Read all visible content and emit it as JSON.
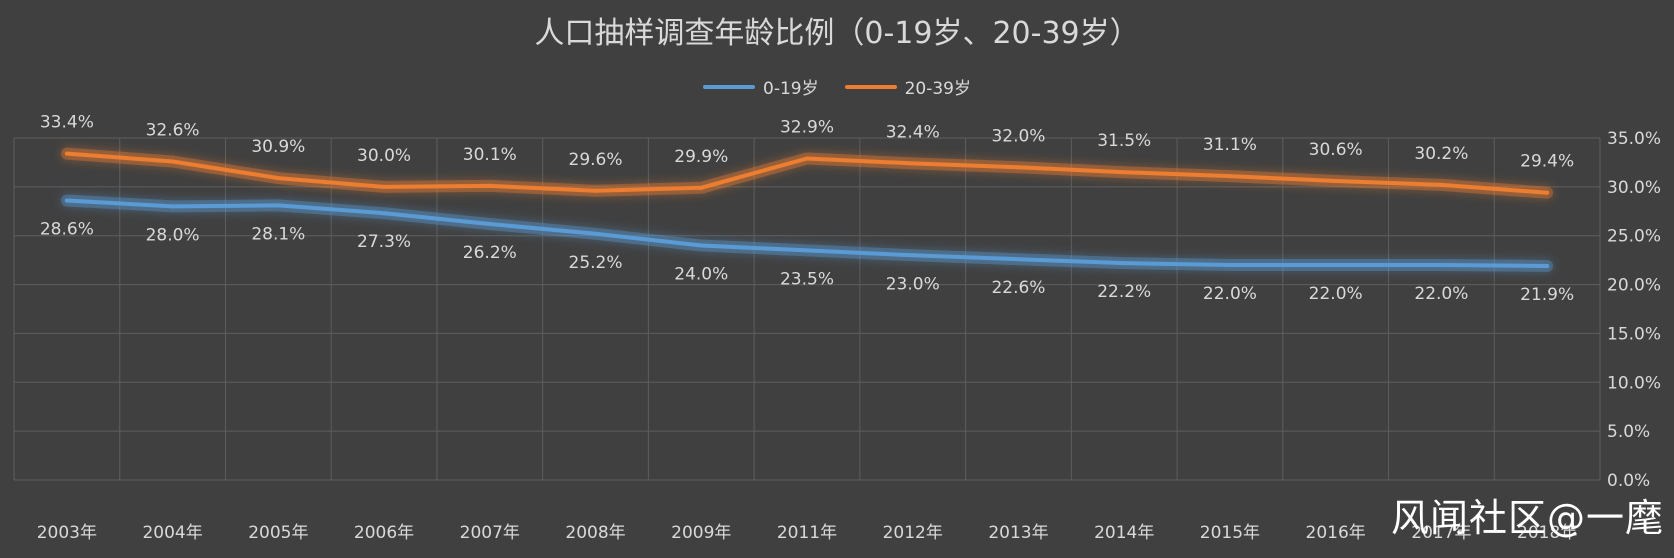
{
  "chart_data": {
    "type": "line",
    "title": "人口抽样调查年龄比例（0-19岁、20-39岁）",
    "categories": [
      "2003年",
      "2004年",
      "2005年",
      "2006年",
      "2007年",
      "2008年",
      "2009年",
      "2011年",
      "2012年",
      "2013年",
      "2014年",
      "2015年",
      "2016年",
      "2017年",
      "2018年"
    ],
    "series": [
      {
        "name": "0-19岁",
        "color": "#5b9bd5",
        "values": [
          28.6,
          28.0,
          28.1,
          27.3,
          26.2,
          25.2,
          24.0,
          23.5,
          23.0,
          22.6,
          22.2,
          22.0,
          22.0,
          22.0,
          21.9
        ],
        "labels": [
          "28.6%",
          "28.0%",
          "28.1%",
          "27.3%",
          "26.2%",
          "25.2%",
          "24.0%",
          "23.5%",
          "23.0%",
          "22.6%",
          "22.2%",
          "22.0%",
          "22.0%",
          "22.0%",
          "21.9%"
        ]
      },
      {
        "name": "20-39岁",
        "color": "#ed7d31",
        "values": [
          33.4,
          32.6,
          30.9,
          30.0,
          30.1,
          29.6,
          29.9,
          32.9,
          32.4,
          32.0,
          31.5,
          31.1,
          30.6,
          30.2,
          29.4
        ],
        "labels": [
          "33.4%",
          "32.6%",
          "30.9%",
          "30.0%",
          "30.1%",
          "29.6%",
          "29.9%",
          "32.9%",
          "32.4%",
          "32.0%",
          "31.5%",
          "31.1%",
          "30.6%",
          "30.2%",
          "29.4%"
        ]
      }
    ],
    "ylim": [
      0,
      35
    ],
    "yticks": [
      0,
      5,
      10,
      15,
      20,
      25,
      30,
      35
    ],
    "ytick_labels": [
      "0.0%",
      "5.0%",
      "10.0%",
      "15.0%",
      "20.0%",
      "25.0%",
      "30.0%",
      "35.0%"
    ],
    "y_axis_side": "right",
    "grid": true,
    "legend_position": "top-center"
  },
  "watermark": "风闻社区@一麾"
}
